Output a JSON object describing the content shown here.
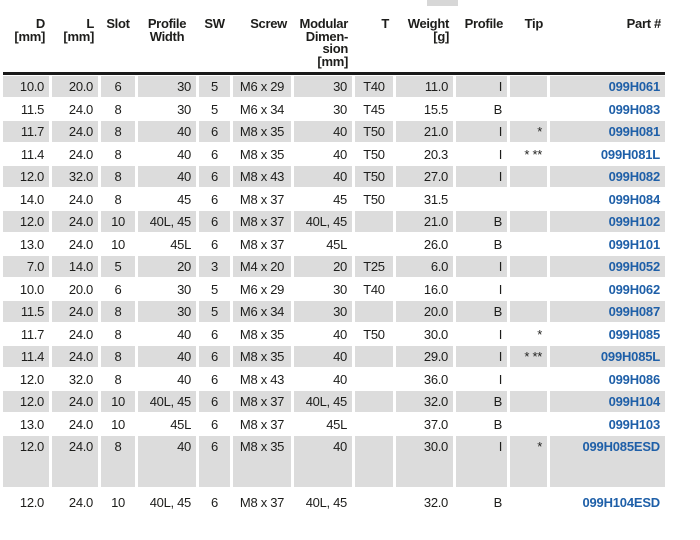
{
  "page": {
    "type": "product-catalog-spec-table"
  },
  "colors": {
    "row_shade": "#dcdcdc",
    "part_number_blue": "#1e5fa8",
    "header_rule_black": "#1a1a1a"
  },
  "decorations": {
    "cutoff_graphic": "partially-cropped-image-edge-top-center"
  },
  "table": {
    "columns": [
      {
        "key": "d",
        "label": "D\n[mm]"
      },
      {
        "key": "l",
        "label": "L\n[mm]"
      },
      {
        "key": "slot",
        "label": "Slot"
      },
      {
        "key": "profile_width",
        "label": "Profile\nWidth"
      },
      {
        "key": "sw",
        "label": "SW"
      },
      {
        "key": "screw",
        "label": "Screw"
      },
      {
        "key": "modular_dimension",
        "label": "Modular\nDimen-\nsion\n[mm]"
      },
      {
        "key": "t",
        "label": "T"
      },
      {
        "key": "weight",
        "label": "Weight\n[g]"
      },
      {
        "key": "profile",
        "label": "Profile"
      },
      {
        "key": "tip",
        "label": "Tip"
      },
      {
        "key": "part_number",
        "label": "Part #"
      }
    ],
    "rows": [
      {
        "d": "10.0",
        "l": "20.0",
        "slot": "6",
        "profile_width": "30",
        "sw": "5",
        "screw": "M6 x 29",
        "modular_dimension": "30",
        "t": "T40",
        "weight": "11.0",
        "profile": "I",
        "tip": "",
        "part_number": "099H061"
      },
      {
        "d": "11.5",
        "l": "24.0",
        "slot": "8",
        "profile_width": "30",
        "sw": "5",
        "screw": "M6 x 34",
        "modular_dimension": "30",
        "t": "T45",
        "weight": "15.5",
        "profile": "B",
        "tip": "",
        "part_number": "099H083"
      },
      {
        "d": "11.7",
        "l": "24.0",
        "slot": "8",
        "profile_width": "40",
        "sw": "6",
        "screw": "M8 x 35",
        "modular_dimension": "40",
        "t": "T50",
        "weight": "21.0",
        "profile": "I",
        "tip": "*",
        "part_number": "099H081"
      },
      {
        "d": "11.4",
        "l": "24.0",
        "slot": "8",
        "profile_width": "40",
        "sw": "6",
        "screw": "M8 x 35",
        "modular_dimension": "40",
        "t": "T50",
        "weight": "20.3",
        "profile": "I",
        "tip": "* **",
        "part_number": "099H081L"
      },
      {
        "d": "12.0",
        "l": "32.0",
        "slot": "8",
        "profile_width": "40",
        "sw": "6",
        "screw": "M8 x 43",
        "modular_dimension": "40",
        "t": "T50",
        "weight": "27.0",
        "profile": "I",
        "tip": "",
        "part_number": "099H082"
      },
      {
        "d": "14.0",
        "l": "24.0",
        "slot": "8",
        "profile_width": "45",
        "sw": "6",
        "screw": "M8 x 37",
        "modular_dimension": "45",
        "t": "T50",
        "weight": "31.5",
        "profile": "",
        "tip": "",
        "part_number": "099H084"
      },
      {
        "d": "12.0",
        "l": "24.0",
        "slot": "10",
        "profile_width": "40L, 45",
        "sw": "6",
        "screw": "M8 x 37",
        "modular_dimension": "40L, 45",
        "t": "",
        "weight": "21.0",
        "profile": "B",
        "tip": "",
        "part_number": "099H102"
      },
      {
        "d": "13.0",
        "l": "24.0",
        "slot": "10",
        "profile_width": "45L",
        "sw": "6",
        "screw": "M8 x 37",
        "modular_dimension": "45L",
        "t": "",
        "weight": "26.0",
        "profile": "B",
        "tip": "",
        "part_number": "099H101"
      },
      {
        "d": "7.0",
        "l": "14.0",
        "slot": "5",
        "profile_width": "20",
        "sw": "3",
        "screw": "M4 x 20",
        "modular_dimension": "20",
        "t": "T25",
        "weight": "6.0",
        "profile": "I",
        "tip": "",
        "part_number": "099H052"
      },
      {
        "d": "10.0",
        "l": "20.0",
        "slot": "6",
        "profile_width": "30",
        "sw": "5",
        "screw": "M6 x 29",
        "modular_dimension": "30",
        "t": "T40",
        "weight": "16.0",
        "profile": "I",
        "tip": "",
        "part_number": "099H062"
      },
      {
        "d": "11.5",
        "l": "24.0",
        "slot": "8",
        "profile_width": "30",
        "sw": "5",
        "screw": "M6 x 34",
        "modular_dimension": "30",
        "t": "",
        "weight": "20.0",
        "profile": "B",
        "tip": "",
        "part_number": "099H087"
      },
      {
        "d": "11.7",
        "l": "24.0",
        "slot": "8",
        "profile_width": "40",
        "sw": "6",
        "screw": "M8 x 35",
        "modular_dimension": "40",
        "t": "T50",
        "weight": "30.0",
        "profile": "I",
        "tip": "*",
        "part_number": "099H085"
      },
      {
        "d": "11.4",
        "l": "24.0",
        "slot": "8",
        "profile_width": "40",
        "sw": "6",
        "screw": "M8 x 35",
        "modular_dimension": "40",
        "t": "",
        "weight": "29.0",
        "profile": "I",
        "tip": "* **",
        "part_number": "099H085L"
      },
      {
        "d": "12.0",
        "l": "32.0",
        "slot": "8",
        "profile_width": "40",
        "sw": "6",
        "screw": "M8 x 43",
        "modular_dimension": "40",
        "t": "",
        "weight": "36.0",
        "profile": "I",
        "tip": "",
        "part_number": "099H086"
      },
      {
        "d": "12.0",
        "l": "24.0",
        "slot": "10",
        "profile_width": "40L, 45",
        "sw": "6",
        "screw": "M8 x 37",
        "modular_dimension": "40L, 45",
        "t": "",
        "weight": "32.0",
        "profile": "B",
        "tip": "",
        "part_number": "099H104"
      },
      {
        "d": "13.0",
        "l": "24.0",
        "slot": "10",
        "profile_width": "45L",
        "sw": "6",
        "screw": "M8 x 37",
        "modular_dimension": "45L",
        "t": "",
        "weight": "37.0",
        "profile": "B",
        "tip": "",
        "part_number": "099H103"
      },
      {
        "d": "12.0",
        "l": "24.0",
        "slot": "8",
        "profile_width": "40",
        "sw": "6",
        "screw": "M8 x 35",
        "modular_dimension": "40",
        "t": "",
        "weight": "30.0",
        "profile": "I",
        "tip": "*",
        "part_number": "099H085ESD"
      },
      {
        "d": "12.0",
        "l": "24.0",
        "slot": "10",
        "profile_width": "40L, 45",
        "sw": "6",
        "screw": "M8 x 37",
        "modular_dimension": "40L, 45",
        "t": "",
        "weight": "32.0",
        "profile": "B",
        "tip": "",
        "part_number": "099H104ESD"
      }
    ]
  }
}
